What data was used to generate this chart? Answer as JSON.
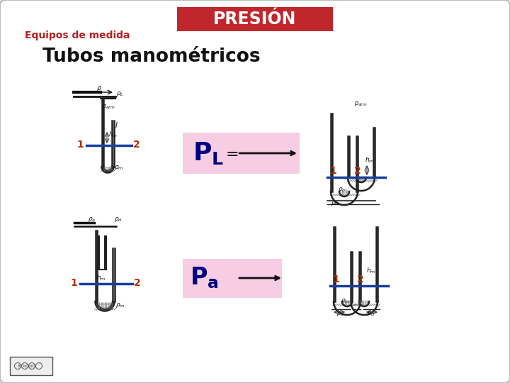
{
  "title": "PRESIÓN",
  "title_bg": "#c0272d",
  "title_fg": "#ffffff",
  "subtitle": "Equipos de medida",
  "subtitle_color": "#b22020",
  "heading": "Tubos manométricos",
  "bg_color": "#f8f8f8",
  "border_color": "#bbbbbb",
  "blue_line_color": "#1a3ea0",
  "tube_color": "#222222",
  "fill_color": "#888888",
  "number_color": "#b03000",
  "pink_box_color": "#f5c8e0",
  "PL_color": "#000080",
  "Pa_color": "#000080",
  "slide_bg": "#e8e8e8"
}
